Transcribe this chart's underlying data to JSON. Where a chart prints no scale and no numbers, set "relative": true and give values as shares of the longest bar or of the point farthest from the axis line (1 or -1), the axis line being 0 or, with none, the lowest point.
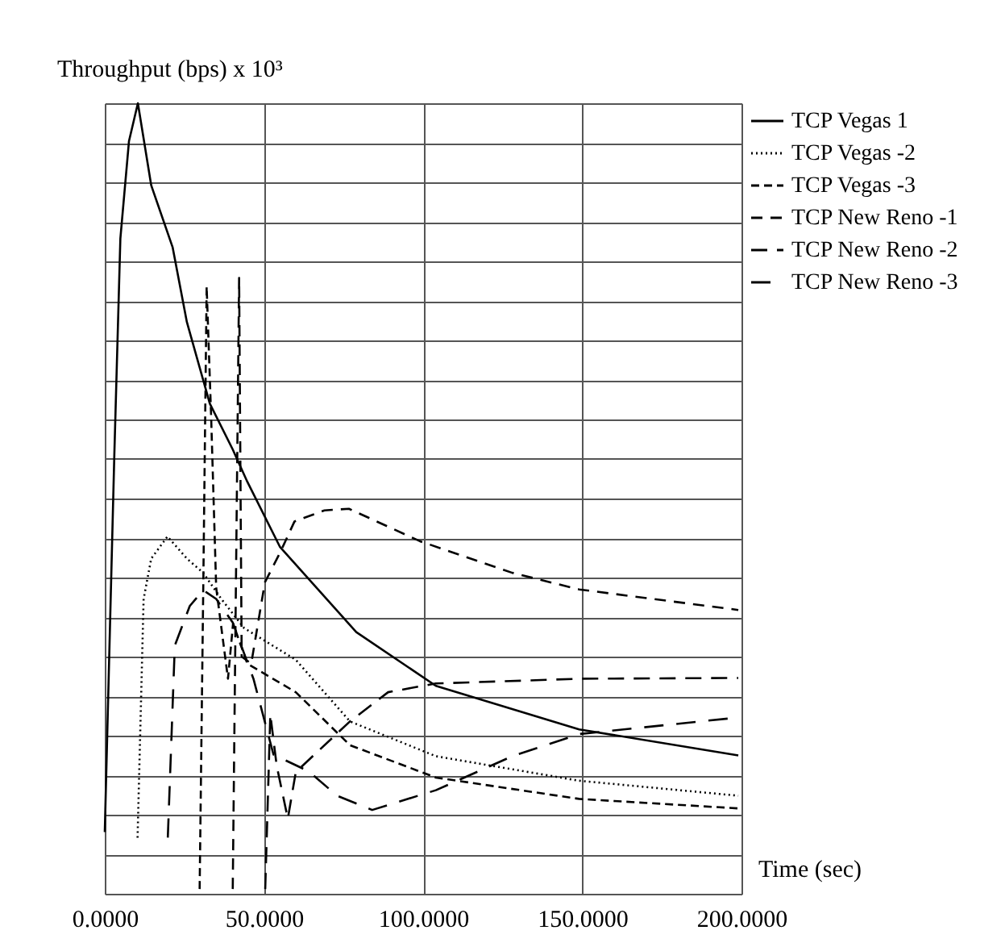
{
  "chart_data": {
    "type": "line",
    "relative": true,
    "xlabel": "Time (sec)",
    "ylabel": "Throughput (bps) x 10³",
    "xlim": [
      0,
      200
    ],
    "xticks": [
      {
        "value": 0,
        "label": "0.0000"
      },
      {
        "value": 50,
        "label": "50.0000"
      },
      {
        "value": 100,
        "label": "100.0000"
      },
      {
        "value": 150,
        "label": "150.0000"
      },
      {
        "value": 200,
        "label": "200.0000"
      }
    ],
    "grid": true,
    "legend": "top right",
    "marker": "none",
    "series": [
      {
        "name": "TCP Vegas 1",
        "color": "#000000",
        "line_style": "solid",
        "x": [
          0,
          3,
          4.9,
          7.6,
          10.4,
          14.6,
          21.3,
          25.8,
          33,
          40.2,
          44.8,
          55,
          79,
          104,
          149,
          199
        ],
        "values": [
          0.078,
          0.555,
          0.829,
          0.952,
          1,
          0.896,
          0.818,
          0.723,
          0.62,
          0.562,
          0.521,
          0.439,
          0.331,
          0.263,
          0.208,
          0.175
        ]
      },
      {
        "name": "TCP Vegas -2",
        "color": "#000000",
        "line_style": "dotted",
        "x": [
          10.3,
          12.2,
          14.6,
          19.7,
          25.8,
          30.9,
          36.6,
          43.8,
          60,
          77,
          104,
          149,
          199
        ],
        "values": [
          0.071,
          0.373,
          0.424,
          0.452,
          0.424,
          0.406,
          0.373,
          0.336,
          0.296,
          0.218,
          0.174,
          0.143,
          0.124
        ]
      },
      {
        "name": "TCP Vegas -3",
        "color": "#000000",
        "line_style": "dashed",
        "x": [
          29.8,
          31,
          32,
          33.4,
          35,
          38.7,
          40.3,
          44.8,
          60,
          77,
          104,
          149,
          199
        ],
        "values": [
          0.006,
          0.409,
          0.768,
          0.605,
          0.387,
          0.272,
          0.342,
          0.291,
          0.255,
          0.188,
          0.147,
          0.12,
          0.108
        ]
      },
      {
        "name": "TCP New Reno -1",
        "color": "#000000",
        "line_style": "dashed",
        "x": [
          40.2,
          42.2,
          43,
          46,
          50.3,
          55,
          59.6,
          69,
          76.7,
          99,
          128,
          149,
          199
        ],
        "values": [
          0.006,
          0.779,
          0.3,
          0.291,
          0.394,
          0.431,
          0.471,
          0.485,
          0.487,
          0.446,
          0.406,
          0.385,
          0.359
        ]
      },
      {
        "name": "TCP New Reno -2",
        "color": "#000000",
        "line_style": "dashed",
        "x": [
          50.4,
          52,
          54,
          57.5,
          60,
          77,
          89,
          104,
          149,
          199
        ],
        "values": [
          0.006,
          0.227,
          0.162,
          0.095,
          0.154,
          0.218,
          0.255,
          0.266,
          0.272,
          0.273
        ]
      },
      {
        "name": "TCP New Reno -3",
        "color": "#000000",
        "line_style": "dashed",
        "x": [
          19.8,
          22,
          26.7,
          30.9,
          35,
          40.2,
          46.7,
          53,
          64,
          73,
          84,
          104,
          128,
          149,
          199
        ],
        "values": [
          0.071,
          0.314,
          0.364,
          0.384,
          0.373,
          0.343,
          0.272,
          0.176,
          0.155,
          0.124,
          0.106,
          0.131,
          0.174,
          0.202,
          0.223
        ]
      }
    ]
  }
}
